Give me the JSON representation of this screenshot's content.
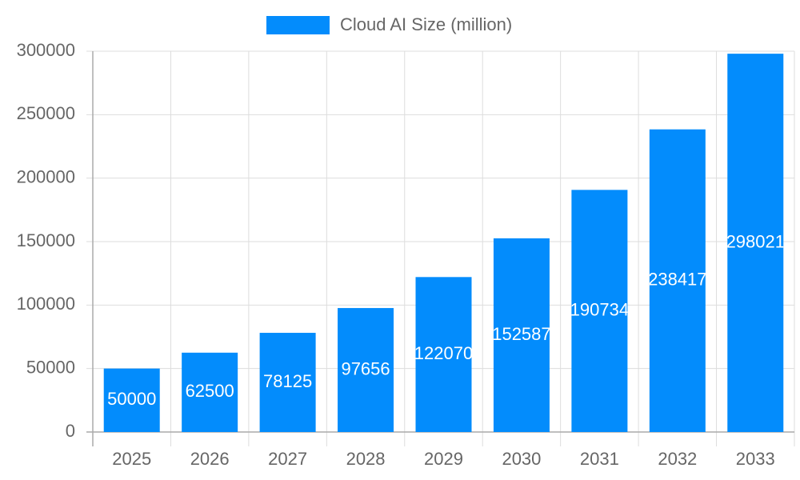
{
  "chart_data": {
    "type": "bar",
    "categories": [
      "2025",
      "2026",
      "2027",
      "2028",
      "2029",
      "2030",
      "2031",
      "2032",
      "2033"
    ],
    "series": [
      {
        "name": "Cloud AI Size (million)",
        "color": "#038cfc",
        "values": [
          50000,
          62500,
          78125,
          97656,
          122070,
          152587,
          190734,
          238417,
          298021
        ]
      }
    ],
    "ylim": [
      0,
      300000
    ],
    "yticks": [
      0,
      50000,
      100000,
      150000,
      200000,
      250000,
      300000
    ],
    "grid": true,
    "legend": "top",
    "data_labels": true
  }
}
